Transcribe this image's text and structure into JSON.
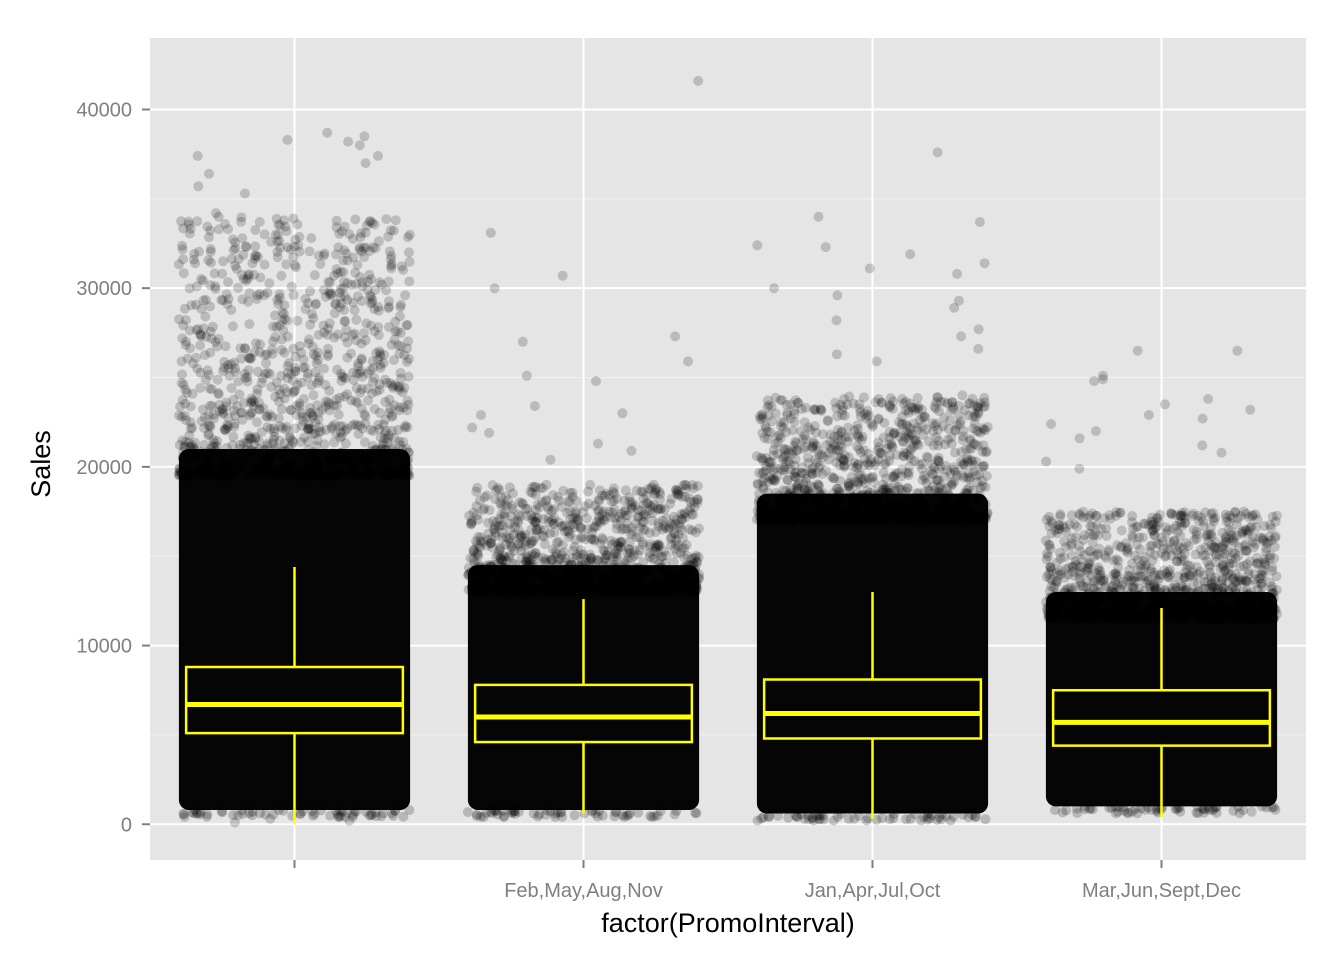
{
  "chart_data": {
    "type": "box",
    "title": "",
    "xlabel": "factor(PromoInterval)",
    "ylabel": "Sales",
    "ylim": [
      -2000,
      44000
    ],
    "y_ticks": [
      0,
      10000,
      20000,
      30000,
      40000
    ],
    "y_tick_labels": [
      "0",
      "10000",
      "20000",
      "30000",
      "40000"
    ],
    "categories": [
      "",
      "Feb,May,Aug,Nov",
      "Jan,Apr,Jul,Oct",
      "Mar,Jun,Sept,Dec"
    ],
    "boxes": [
      {
        "category": "",
        "whisker_low": 0,
        "q1": 5100,
        "median": 6700,
        "q3": 8800,
        "whisker_high": 14400
      },
      {
        "category": "Feb,May,Aug,Nov",
        "whisker_low": 600,
        "q1": 4600,
        "median": 6000,
        "q3": 7800,
        "whisker_high": 12600
      },
      {
        "category": "Jan,Apr,Jul,Oct",
        "whisker_low": 300,
        "q1": 4800,
        "median": 6200,
        "q3": 8100,
        "whisker_high": 13000
      },
      {
        "category": "Mar,Jun,Sept,Dec",
        "whisker_low": 400,
        "q1": 4400,
        "median": 5700,
        "q3": 7500,
        "whisker_high": 12100
      }
    ],
    "jitter_points": [
      {
        "category": "",
        "dense_low": 800,
        "dense_high": 21000,
        "sparse_high": 34000,
        "outliers": [
          38500,
          38700,
          38200,
          38300,
          37400,
          37000,
          36400,
          35700,
          38000,
          37400,
          35300,
          34200,
          33900,
          33500,
          32800,
          32000,
          31400,
          30600,
          200,
          400,
          100,
          300,
          500
        ]
      },
      {
        "category": "Feb,May,Aug,Nov",
        "dense_low": 800,
        "dense_high": 14500,
        "sparse_high": 19000,
        "outliers": [
          41600,
          33100,
          30700,
          30000,
          27300,
          27000,
          25900,
          25100,
          24800,
          23400,
          23000,
          22900,
          22200,
          21900,
          21300,
          20900,
          20400
        ]
      },
      {
        "category": "Jan,Apr,Jul,Oct",
        "dense_low": 600,
        "dense_high": 18500,
        "sparse_high": 24000,
        "outliers": [
          37600,
          34000,
          33700,
          32400,
          32300,
          31900,
          31400,
          31100,
          30800,
          30000,
          29600,
          29300,
          28900,
          28200,
          27700,
          27300,
          26600,
          26300,
          25900
        ]
      },
      {
        "category": "Mar,Jun,Sept,Dec",
        "dense_low": 1000,
        "dense_high": 13000,
        "sparse_high": 17500,
        "outliers": [
          26500,
          26500,
          25100,
          24800,
          24900,
          23800,
          23500,
          23200,
          22900,
          22700,
          22400,
          22000,
          21600,
          21200,
          20800,
          20300,
          19900,
          600,
          700
        ]
      }
    ],
    "point_color": "#000000",
    "box_color": "#ffff00",
    "panel_background": "#e5e5e5",
    "grid": true,
    "legend": "none"
  }
}
